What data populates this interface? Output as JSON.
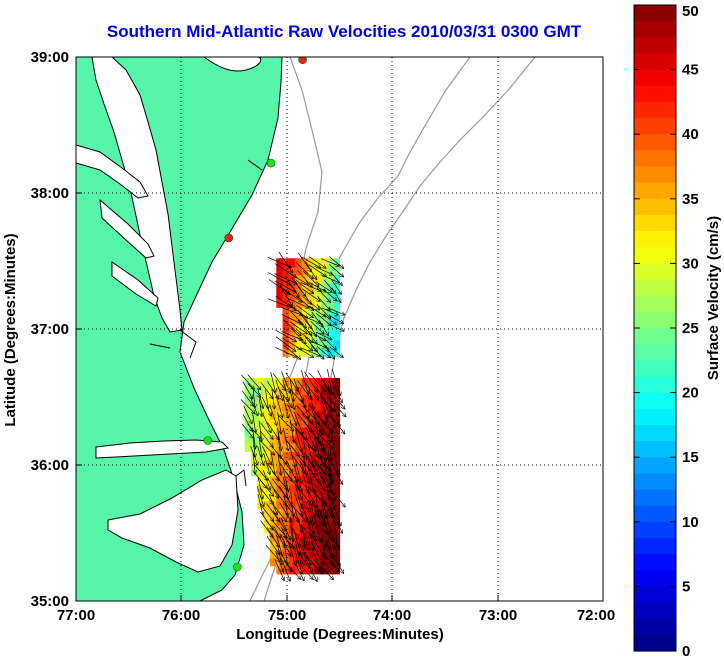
{
  "title": "Southern Mid-Atlantic Raw Velocities 2010/03/31 0300 GMT",
  "axes": {
    "xlabel": "Longitude (Degrees:Minutes)",
    "ylabel": "Latitude (Degrees:Minutes)",
    "x_ticks": [
      "77:00",
      "76:00",
      "75:00",
      "74:00",
      "73:00",
      "72:00"
    ],
    "y_ticks": [
      "39:00",
      "38:00",
      "37:00",
      "36:00",
      "35:00"
    ],
    "xlim": [
      -77,
      -72
    ],
    "ylim": [
      35,
      39
    ],
    "grid": "dotted"
  },
  "colorbar": {
    "label": "Surface Velocity (cm/s)",
    "ticks": [
      "50",
      "45",
      "40",
      "35",
      "30",
      "25",
      "20",
      "15",
      "10",
      "5",
      "0"
    ],
    "range": [
      0,
      50
    ],
    "colormap": "jet"
  },
  "colors": {
    "land": "#55f5aa",
    "coast": "#000000",
    "isobath": "#9a9a9a",
    "title": "#0000e6",
    "station_green": "#22dd22",
    "station_red": "#ee2222"
  },
  "chart_data": {
    "type": "vector-field",
    "stations": [
      {
        "lon": -74.85,
        "lat": 38.98,
        "status": "red"
      },
      {
        "lon": -75.15,
        "lat": 38.22,
        "status": "green"
      },
      {
        "lon": -75.55,
        "lat": 37.67,
        "status": "red"
      },
      {
        "lon": -75.75,
        "lat": 36.18,
        "status": "green"
      },
      {
        "lon": -75.47,
        "lat": 35.25,
        "status": "green"
      }
    ],
    "regions": [
      {
        "name": "north",
        "lon_range": [
          -75.1,
          -74.5
        ],
        "lat_range": [
          36.8,
          37.5
        ],
        "speed_range_cm_s": [
          8,
          45
        ]
      },
      {
        "name": "south",
        "lon_range": [
          -75.4,
          -74.5
        ],
        "lat_range": [
          35.2,
          36.6
        ],
        "speed_range_cm_s": [
          15,
          50
        ]
      }
    ]
  }
}
